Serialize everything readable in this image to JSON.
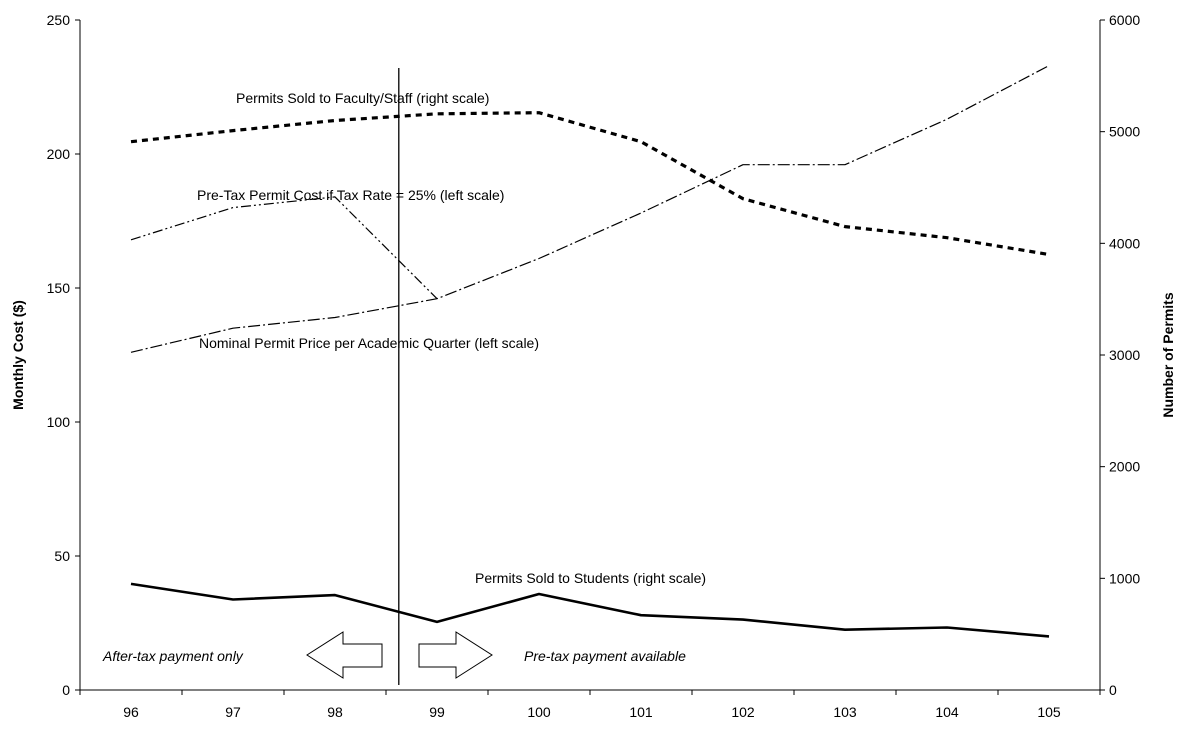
{
  "chart_data": {
    "type": "line",
    "x": [
      "96",
      "97",
      "98",
      "99",
      "100",
      "101",
      "102",
      "103",
      "104",
      "105"
    ],
    "left_axis": {
      "label": "Monthly Cost ($)",
      "range": [
        0,
        250
      ],
      "ticks": [
        "0",
        "50",
        "100",
        "150",
        "200",
        "250"
      ]
    },
    "right_axis": {
      "label": "Number of Permits",
      "range": [
        0,
        6000
      ],
      "ticks": [
        "0",
        "1000",
        "2000",
        "3000",
        "4000",
        "5000",
        "6000"
      ]
    },
    "series": [
      {
        "name": "Permits Sold to Faculty/Staff (right scale)",
        "axis": "right",
        "style": "dashed-bold",
        "values": [
          4910,
          5010,
          5100,
          5160,
          5170,
          4910,
          4400,
          4150,
          4050,
          3900
        ]
      },
      {
        "name": "Pre-Tax Permit Cost if Tax Rate = 25% (left scale)",
        "axis": "left",
        "style": "dash-dot-dot",
        "values": [
          168,
          180,
          184,
          146,
          null,
          null,
          null,
          null,
          null,
          null
        ]
      },
      {
        "name": "Nominal Permit Price per Academic Quarter (left scale)",
        "axis": "left",
        "style": "dash-dot",
        "values": [
          126,
          135,
          139,
          146,
          161,
          178,
          196,
          196,
          213,
          233
        ]
      },
      {
        "name": "Permits Sold to Students (right scale)",
        "axis": "right",
        "style": "solid-bold",
        "values": [
          950,
          810,
          850,
          610,
          860,
          670,
          630,
          540,
          560,
          480
        ]
      }
    ],
    "divider_after": "98",
    "annotations": {
      "before": "After-tax payment only",
      "after": "Pre-tax payment available"
    },
    "grid": false
  }
}
